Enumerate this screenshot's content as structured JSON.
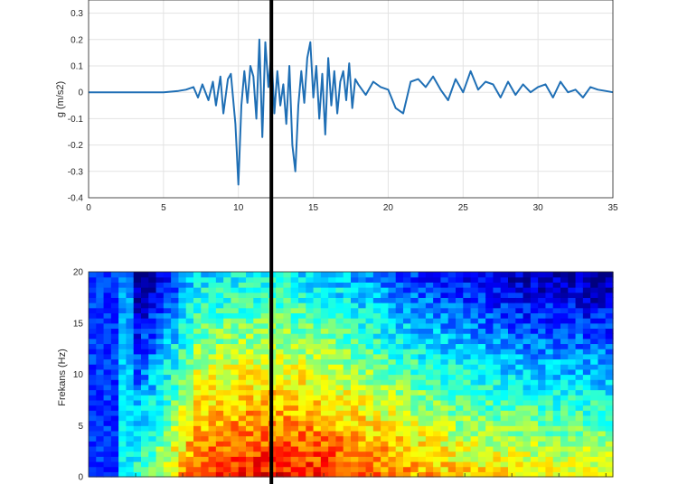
{
  "chart_data": [
    {
      "type": "line",
      "title": "",
      "xlabel": "",
      "ylabel": "g (m/s2)",
      "xlim": [
        0,
        35
      ],
      "ylim": [
        -0.4,
        0.35
      ],
      "xticks": [
        "0",
        "5",
        "10",
        "15",
        "20",
        "25",
        "30",
        "35"
      ],
      "yticks": [
        "-0.4",
        "-0.3",
        "-0.2",
        "-0.1",
        "0",
        "0.1",
        "0.2",
        "0.3"
      ],
      "grid": true,
      "line_color": "#1f6fb5",
      "series": [
        {
          "x": [
            0,
            5,
            6.0,
            6.5,
            7.0,
            7.3,
            7.6,
            8.0,
            8.3,
            8.5,
            8.8,
            9.0,
            9.3,
            9.5,
            9.8,
            10.0,
            10.2,
            10.4,
            10.6,
            10.8,
            11.0,
            11.2,
            11.4,
            11.6,
            11.8,
            12.0,
            12.2,
            12.4,
            12.6,
            12.8,
            13.0,
            13.2,
            13.4,
            13.6,
            13.8,
            14.0,
            14.2,
            14.4,
            14.6,
            14.8,
            15.0,
            15.2,
            15.4,
            15.6,
            15.8,
            16.0,
            16.2,
            16.4,
            16.6,
            16.8,
            17.0,
            17.2,
            17.4,
            17.6,
            17.8,
            18.0,
            18.5,
            19.0,
            19.5,
            20.0,
            20.5,
            21.0,
            21.5,
            22.0,
            22.5,
            23.0,
            23.5,
            24.0,
            24.5,
            25.0,
            25.5,
            26.0,
            26.5,
            27.0,
            27.5,
            28.0,
            28.5,
            29.0,
            29.5,
            30.0,
            30.5,
            31.0,
            31.5,
            32.0,
            32.5,
            33.0,
            33.5,
            34.0,
            34.5,
            35.0
          ],
          "y": [
            0,
            0,
            0.005,
            0.01,
            0.02,
            -0.02,
            0.03,
            -0.03,
            0.04,
            -0.05,
            0.06,
            -0.08,
            0.05,
            0.07,
            -0.12,
            -0.35,
            -0.05,
            0.08,
            -0.04,
            0.1,
            0.06,
            -0.1,
            0.2,
            -0.17,
            0.19,
            0.02,
            0.15,
            -0.08,
            0.08,
            -0.05,
            0.03,
            -0.12,
            0.1,
            -0.2,
            -0.3,
            -0.05,
            0.08,
            -0.04,
            0.13,
            0.19,
            -0.02,
            0.1,
            -0.1,
            0.07,
            -0.16,
            0.13,
            -0.05,
            0.08,
            -0.08,
            0.04,
            0.08,
            -0.03,
            0.11,
            -0.06,
            0.05,
            0.03,
            -0.01,
            0.04,
            0.02,
            0.01,
            -0.06,
            -0.08,
            0.04,
            0.05,
            0.02,
            0.06,
            0.01,
            -0.03,
            0.05,
            0.0,
            0.08,
            0.01,
            0.04,
            0.03,
            -0.02,
            0.04,
            -0.01,
            0.03,
            0.0,
            0.02,
            0.03,
            -0.02,
            0.04,
            0.0,
            0.01,
            -0.02,
            0.02,
            0.01,
            0.005,
            0.0
          ]
        }
      ]
    },
    {
      "type": "heatmap",
      "title": "",
      "xlabel": "",
      "ylabel": "Frekans (Hz)",
      "xlim": [
        0,
        35
      ],
      "ylim": [
        0,
        20
      ],
      "yticks": [
        "0",
        "5",
        "10",
        "15",
        "20"
      ],
      "colormap": "jet",
      "x_bins": 70,
      "y_bins": 40,
      "low_color": "#0a10c8",
      "high_color": "#d00000"
    }
  ],
  "cursor": {
    "time": 12.2,
    "color": "#000000"
  }
}
